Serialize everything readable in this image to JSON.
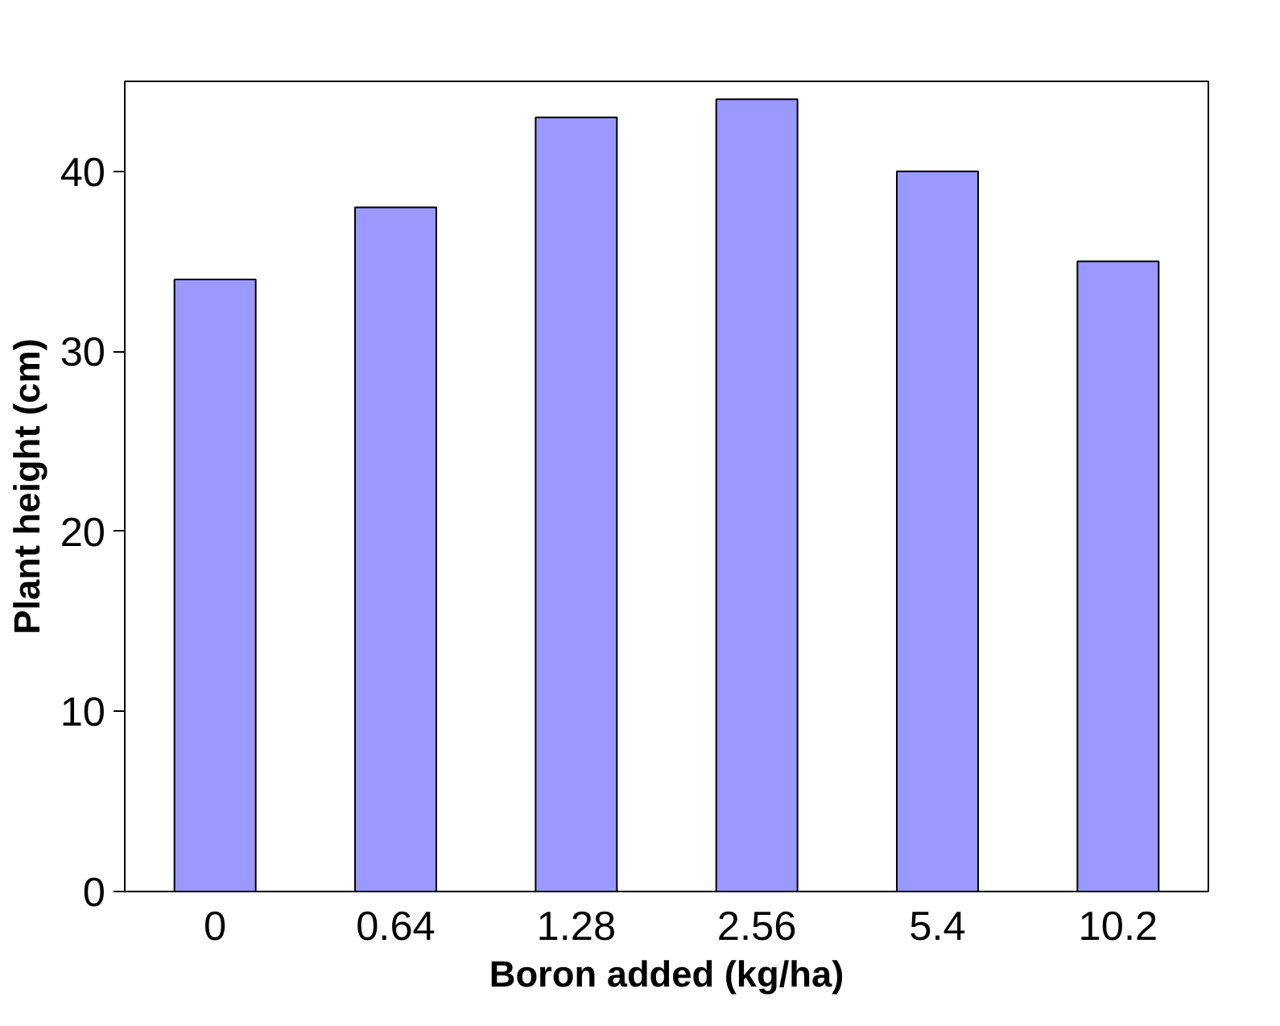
{
  "chart_data": {
    "type": "bar",
    "xlabel": "Boron added (kg/ha)",
    "ylabel": "Plant height (cm)",
    "categories": [
      "0",
      "0.64",
      "1.28",
      "2.56",
      "5.4",
      "10.2"
    ],
    "values": [
      34,
      38,
      43,
      44,
      40,
      35
    ],
    "color": "#9999ff",
    "ylim": [
      0,
      45
    ],
    "yticks": [
      0,
      10,
      20,
      30,
      40
    ],
    "grid": false
  }
}
